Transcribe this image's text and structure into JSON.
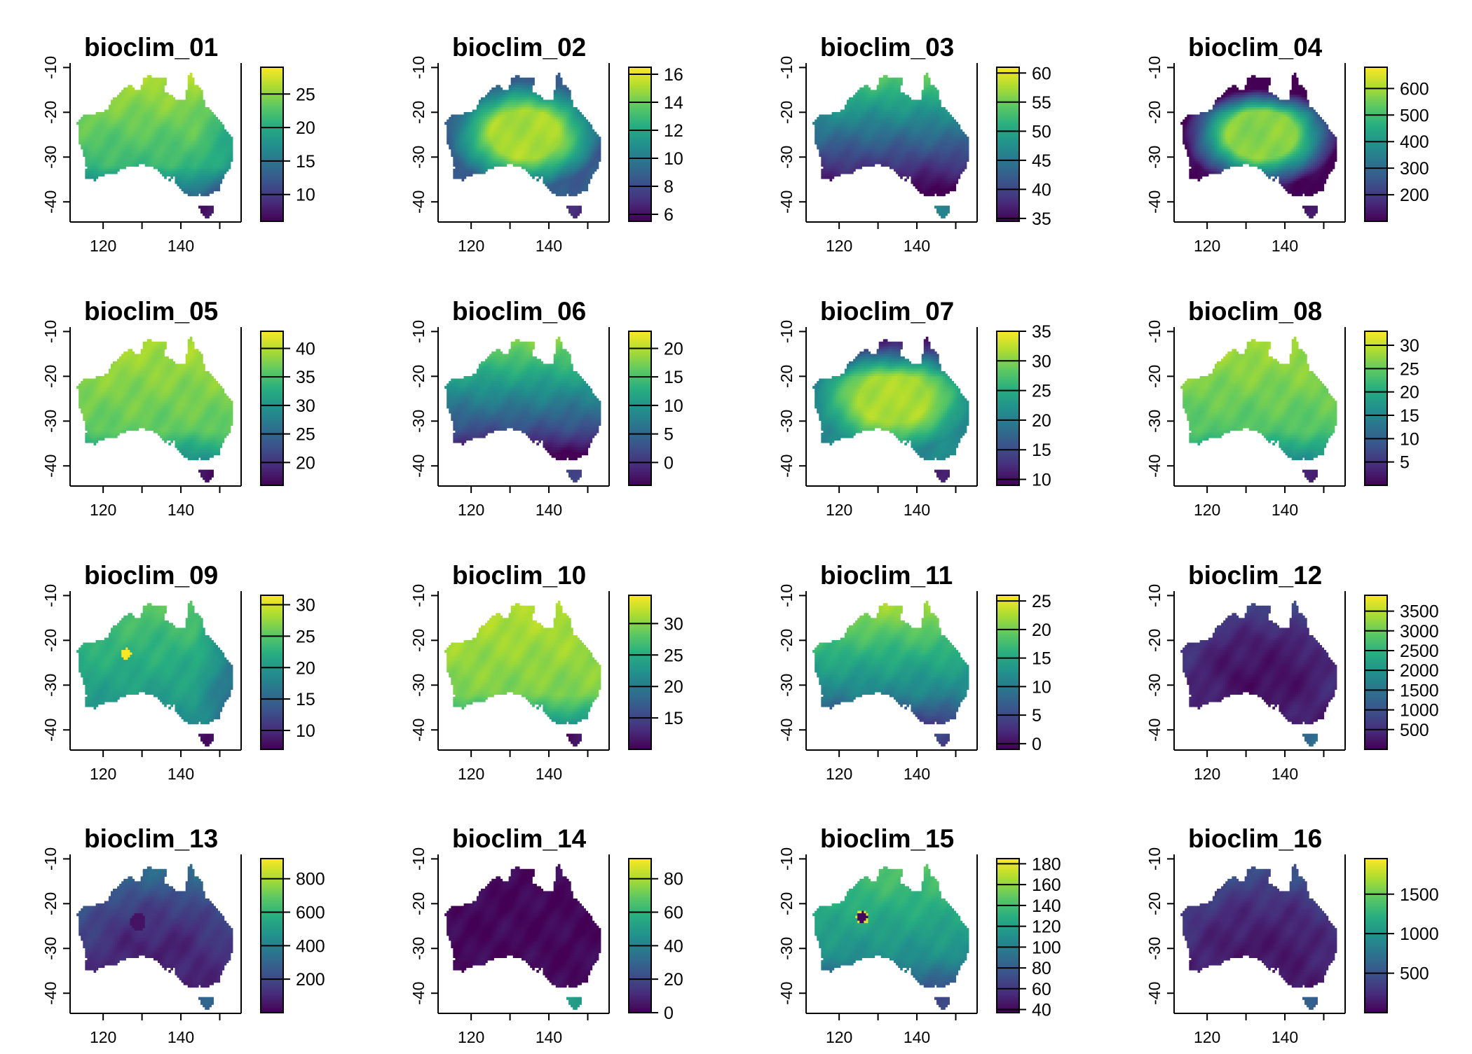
{
  "palette": [
    "#440154",
    "#472d7b",
    "#3b528b",
    "#2c728e",
    "#21918c",
    "#28ae80",
    "#5ec962",
    "#addc30",
    "#fde725"
  ],
  "axes": {
    "x_ticks": [
      "120",
      "140"
    ],
    "y_ticks": [
      "-10",
      "-20",
      "-30",
      "-40"
    ]
  },
  "panels": [
    {
      "title": "bioclim_01",
      "legend": {
        "min": 6,
        "max": 29,
        "ticks": [
          10,
          15,
          20,
          25
        ]
      },
      "field": {
        "base": 0.72,
        "north_boost": 0.18,
        "south_drop": 0.55,
        "east_drop": 0.2,
        "tas": 0.05
      }
    },
    {
      "title": "bioclim_02",
      "legend": {
        "min": 5.5,
        "max": 16.5,
        "ticks": [
          6,
          8,
          10,
          12,
          14,
          16
        ]
      },
      "field": {
        "base": 0.78,
        "center_boost": 0.12,
        "coast_drop": 0.45,
        "tas": 0.1
      }
    },
    {
      "title": "bioclim_03",
      "legend": {
        "min": 34.5,
        "max": 61,
        "ticks": [
          35,
          40,
          45,
          50,
          55,
          60
        ]
      },
      "field": {
        "base": 0.3,
        "north_boost": 0.5,
        "tas": 0.45
      }
    },
    {
      "title": "bioclim_04",
      "legend": {
        "min": 100,
        "max": 680,
        "ticks": [
          200,
          300,
          400,
          500,
          600
        ]
      },
      "field": {
        "base": 0.5,
        "center_boost": 0.45,
        "north_drop": 0.5,
        "coast_drop": 0.35,
        "tas": 0.05
      }
    },
    {
      "title": "bioclim_05",
      "legend": {
        "min": 16,
        "max": 43,
        "ticks": [
          20,
          25,
          30,
          35,
          40
        ]
      },
      "field": {
        "base": 0.78,
        "north_boost": 0.1,
        "south_drop": 0.45,
        "tas": 0.05
      }
    },
    {
      "title": "bioclim_06",
      "legend": {
        "min": -4,
        "max": 23,
        "ticks": [
          0,
          5,
          10,
          15,
          20
        ]
      },
      "field": {
        "base": 0.38,
        "north_boost": 0.5,
        "south_drop": 0.2,
        "tas": 0.2
      }
    },
    {
      "title": "bioclim_07",
      "legend": {
        "min": 9,
        "max": 35,
        "ticks": [
          10,
          15,
          20,
          25,
          30,
          35
        ]
      },
      "field": {
        "base": 0.8,
        "center_boost": 0.1,
        "north_drop": 0.55,
        "coast_drop": 0.3,
        "tas": 0.1
      }
    },
    {
      "title": "bioclim_08",
      "legend": {
        "min": 0,
        "max": 33,
        "ticks": [
          5,
          10,
          15,
          20,
          25,
          30
        ]
      },
      "field": {
        "base": 0.76,
        "north_boost": 0.12,
        "south_drop": 0.4,
        "tas": 0.1
      }
    },
    {
      "title": "bioclim_09",
      "legend": {
        "min": 7,
        "max": 31.5,
        "ticks": [
          10,
          15,
          20,
          25,
          30
        ]
      },
      "field": {
        "base": 0.6,
        "north_boost": 0.15,
        "east_drop": 0.3,
        "tas": 0.05,
        "hotspot": [
          126,
          -23,
          1.0
        ]
      }
    },
    {
      "title": "bioclim_10",
      "legend": {
        "min": 10,
        "max": 34.5,
        "ticks": [
          15,
          20,
          25,
          30
        ]
      },
      "field": {
        "base": 0.82,
        "north_boost": 0.08,
        "south_drop": 0.5,
        "tas": 0.05
      }
    },
    {
      "title": "bioclim_11",
      "legend": {
        "min": -1,
        "max": 26,
        "ticks": [
          0,
          5,
          10,
          15,
          20,
          25
        ]
      },
      "field": {
        "base": 0.55,
        "north_boost": 0.35,
        "south_drop": 0.3,
        "tas": 0.2
      }
    },
    {
      "title": "bioclim_12",
      "legend": {
        "min": 0,
        "max": 3900,
        "ticks": [
          500,
          1000,
          1500,
          2000,
          2500,
          3000,
          3500
        ]
      },
      "field": {
        "base": 0.05,
        "north_boost": 0.08,
        "coast_boost": 0.08,
        "tas": 0.35
      }
    },
    {
      "title": "bioclim_13",
      "legend": {
        "min": 0,
        "max": 920,
        "ticks": [
          200,
          400,
          600,
          800
        ]
      },
      "field": {
        "base": 0.12,
        "north_boost": 0.18,
        "coast_boost": 0.08,
        "tas": 0.3,
        "coldspot": [
          129,
          -24,
          0.0
        ]
      }
    },
    {
      "title": "bioclim_14",
      "legend": {
        "min": 0,
        "max": 92,
        "ticks": [
          0,
          20,
          40,
          60,
          80
        ]
      },
      "field": {
        "base": 0.02,
        "tas": 0.55
      }
    },
    {
      "title": "bioclim_15",
      "legend": {
        "min": 37,
        "max": 185,
        "ticks": [
          40,
          60,
          80,
          100,
          120,
          140,
          160,
          180
        ]
      },
      "field": {
        "base": 0.55,
        "north_boost": 0.2,
        "south_drop": 0.3,
        "tas": 0.2,
        "ring": [
          126,
          -23,
          0.0
        ]
      }
    },
    {
      "title": "bioclim_16",
      "legend": {
        "min": 0,
        "max": 1950,
        "ticks": [
          500,
          1000,
          1500
        ]
      },
      "field": {
        "base": 0.08,
        "north_boost": 0.12,
        "coast_boost": 0.06,
        "tas": 0.3
      }
    }
  ]
}
